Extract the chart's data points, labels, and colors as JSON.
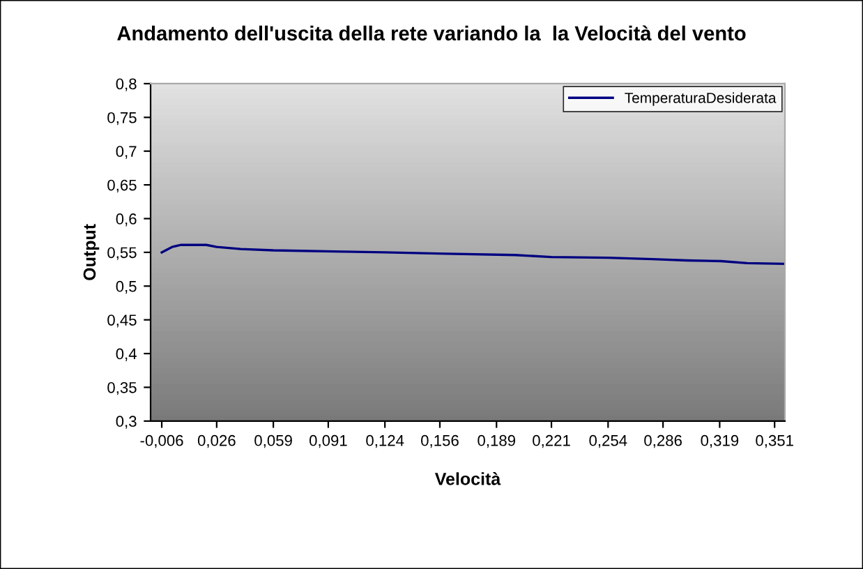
{
  "chart_data": {
    "type": "line",
    "title": "Andamento dell'uscita della rete variando la  la Velocità del vento",
    "xlabel": "Velocità",
    "ylabel": "Output",
    "series": [
      {
        "name": "TemperaturaDesiderata",
        "color": "#000080",
        "x": [
          -0.006,
          0.0,
          0.005,
          0.02,
          0.026,
          0.04,
          0.059,
          0.1,
          0.124,
          0.16,
          0.2,
          0.221,
          0.254,
          0.28,
          0.3,
          0.32,
          0.335,
          0.357
        ],
        "values": [
          0.55,
          0.558,
          0.561,
          0.561,
          0.558,
          0.555,
          0.553,
          0.551,
          0.55,
          0.548,
          0.546,
          0.543,
          0.542,
          0.54,
          0.538,
          0.537,
          0.534,
          0.533
        ]
      }
    ],
    "xlim": [
      -0.0125,
      0.357
    ],
    "xticks": [
      {
        "value": -0.006,
        "label": "-0,006"
      },
      {
        "value": 0.026,
        "label": "0,026"
      },
      {
        "value": 0.059,
        "label": "0,059"
      },
      {
        "value": 0.091,
        "label": "0,091"
      },
      {
        "value": 0.124,
        "label": "0,124"
      },
      {
        "value": 0.156,
        "label": "0,156"
      },
      {
        "value": 0.189,
        "label": "0,189"
      },
      {
        "value": 0.221,
        "label": "0,221"
      },
      {
        "value": 0.254,
        "label": "0,254"
      },
      {
        "value": 0.286,
        "label": "0,286"
      },
      {
        "value": 0.319,
        "label": "0,319"
      },
      {
        "value": 0.351,
        "label": "0,351"
      }
    ],
    "ylim": [
      0.3,
      0.8
    ],
    "yticks": [
      {
        "value": 0.3,
        "label": "0,3"
      },
      {
        "value": 0.35,
        "label": "0,35"
      },
      {
        "value": 0.4,
        "label": "0,4"
      },
      {
        "value": 0.45,
        "label": "0,45"
      },
      {
        "value": 0.5,
        "label": "0,5"
      },
      {
        "value": 0.55,
        "label": "0,55"
      },
      {
        "value": 0.6,
        "label": "0,6"
      },
      {
        "value": 0.65,
        "label": "0,65"
      },
      {
        "value": 0.7,
        "label": "0,7"
      },
      {
        "value": 0.75,
        "label": "0,75"
      },
      {
        "value": 0.8,
        "label": "0,8"
      }
    ],
    "legend": "top right",
    "grid": false,
    "marker": "none",
    "line_style": "solid"
  }
}
